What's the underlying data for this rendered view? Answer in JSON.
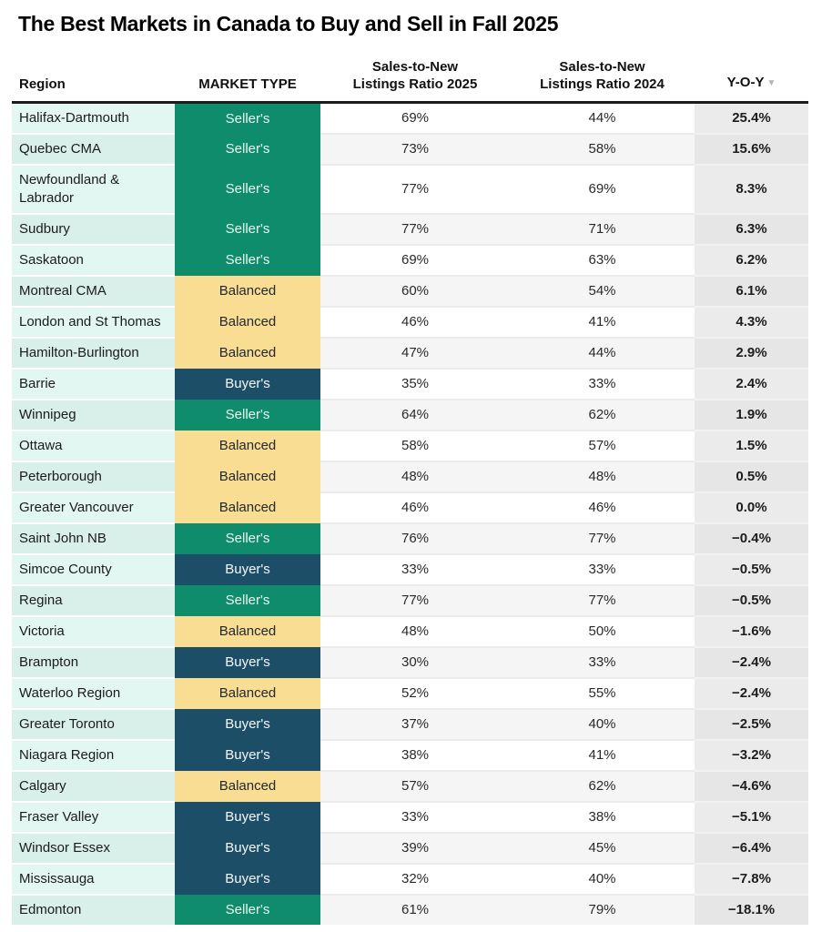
{
  "title": "The Best Markets in Canada to Buy and Sell in Fall 2025",
  "header": {
    "region": "Region",
    "market_type": "MARKET TYPE",
    "ratio_2025_line1": "Sales-to-New",
    "ratio_2025_line2": "Listings Ratio 2025",
    "ratio_2024_line1": "Sales-to-New",
    "ratio_2024_line2": "Listings Ratio 2024",
    "yoy": "Y-O-Y",
    "sort_indicator": "▼"
  },
  "colors": {
    "sellers": "#0f8c6b",
    "buyers": "#1d4e68",
    "balanced": "#f8dd92",
    "region-odd": "#e2f7f2",
    "region-even": "#d9f0ea",
    "ratio-odd": "#ffffff",
    "ratio-even": "#f5f5f5",
    "yoy-odd": "#ebebeb",
    "yoy-even": "#e6e6e6",
    "header-border": "#1c1c1c"
  },
  "chart_data": {
    "type": "table",
    "title": "The Best Markets in Canada to Buy and Sell in Fall 2025",
    "columns": [
      "Region",
      "MARKET TYPE",
      "Sales-to-New Listings Ratio 2025",
      "Sales-to-New Listings Ratio 2024",
      "Y-O-Y"
    ],
    "sort": {
      "column": "Y-O-Y",
      "direction": "descending"
    },
    "rows": [
      {
        "region": "Halifax-Dartmouth",
        "market_type": "Seller's",
        "type_key": "sellers",
        "ratio_2025": "69%",
        "ratio_2024": "44%",
        "yoy": "25.4%"
      },
      {
        "region": "Quebec CMA",
        "market_type": "Seller's",
        "type_key": "sellers",
        "ratio_2025": "73%",
        "ratio_2024": "58%",
        "yoy": "15.6%"
      },
      {
        "region": "Newfoundland & Labrador",
        "market_type": "Seller's",
        "type_key": "sellers",
        "ratio_2025": "77%",
        "ratio_2024": "69%",
        "yoy": "8.3%"
      },
      {
        "region": "Sudbury",
        "market_type": "Seller's",
        "type_key": "sellers",
        "ratio_2025": "77%",
        "ratio_2024": "71%",
        "yoy": "6.3%"
      },
      {
        "region": "Saskatoon",
        "market_type": "Seller's",
        "type_key": "sellers",
        "ratio_2025": "69%",
        "ratio_2024": "63%",
        "yoy": "6.2%"
      },
      {
        "region": "Montreal CMA",
        "market_type": "Balanced",
        "type_key": "balanced",
        "ratio_2025": "60%",
        "ratio_2024": "54%",
        "yoy": "6.1%"
      },
      {
        "region": "London and St Thomas",
        "market_type": "Balanced",
        "type_key": "balanced",
        "ratio_2025": "46%",
        "ratio_2024": "41%",
        "yoy": "4.3%"
      },
      {
        "region": "Hamilton-Burlington",
        "market_type": "Balanced",
        "type_key": "balanced",
        "ratio_2025": "47%",
        "ratio_2024": "44%",
        "yoy": "2.9%"
      },
      {
        "region": "Barrie",
        "market_type": "Buyer's",
        "type_key": "buyers",
        "ratio_2025": "35%",
        "ratio_2024": "33%",
        "yoy": "2.4%"
      },
      {
        "region": "Winnipeg",
        "market_type": "Seller's",
        "type_key": "sellers",
        "ratio_2025": "64%",
        "ratio_2024": "62%",
        "yoy": "1.9%"
      },
      {
        "region": "Ottawa",
        "market_type": "Balanced",
        "type_key": "balanced",
        "ratio_2025": "58%",
        "ratio_2024": "57%",
        "yoy": "1.5%"
      },
      {
        "region": "Peterborough",
        "market_type": "Balanced",
        "type_key": "balanced",
        "ratio_2025": "48%",
        "ratio_2024": "48%",
        "yoy": "0.5%"
      },
      {
        "region": "Greater Vancouver",
        "market_type": "Balanced",
        "type_key": "balanced",
        "ratio_2025": "46%",
        "ratio_2024": "46%",
        "yoy": "0.0%"
      },
      {
        "region": "Saint John NB",
        "market_type": "Seller's",
        "type_key": "sellers",
        "ratio_2025": "76%",
        "ratio_2024": "77%",
        "yoy": "−0.4%"
      },
      {
        "region": "Simcoe County",
        "market_type": "Buyer's",
        "type_key": "buyers",
        "ratio_2025": "33%",
        "ratio_2024": "33%",
        "yoy": "−0.5%"
      },
      {
        "region": "Regina",
        "market_type": "Seller's",
        "type_key": "sellers",
        "ratio_2025": "77%",
        "ratio_2024": "77%",
        "yoy": "−0.5%"
      },
      {
        "region": "Victoria",
        "market_type": "Balanced",
        "type_key": "balanced",
        "ratio_2025": "48%",
        "ratio_2024": "50%",
        "yoy": "−1.6%"
      },
      {
        "region": "Brampton",
        "market_type": "Buyer's",
        "type_key": "buyers",
        "ratio_2025": "30%",
        "ratio_2024": "33%",
        "yoy": "−2.4%"
      },
      {
        "region": "Waterloo Region",
        "market_type": "Balanced",
        "type_key": "balanced",
        "ratio_2025": "52%",
        "ratio_2024": "55%",
        "yoy": "−2.4%"
      },
      {
        "region": "Greater Toronto",
        "market_type": "Buyer's",
        "type_key": "buyers",
        "ratio_2025": "37%",
        "ratio_2024": "40%",
        "yoy": "−2.5%"
      },
      {
        "region": "Niagara Region",
        "market_type": "Buyer's",
        "type_key": "buyers",
        "ratio_2025": "38%",
        "ratio_2024": "41%",
        "yoy": "−3.2%"
      },
      {
        "region": "Calgary",
        "market_type": "Balanced",
        "type_key": "balanced",
        "ratio_2025": "57%",
        "ratio_2024": "62%",
        "yoy": "−4.6%"
      },
      {
        "region": "Fraser Valley",
        "market_type": "Buyer's",
        "type_key": "buyers",
        "ratio_2025": "33%",
        "ratio_2024": "38%",
        "yoy": "−5.1%"
      },
      {
        "region": "Windsor Essex",
        "market_type": "Buyer's",
        "type_key": "buyers",
        "ratio_2025": "39%",
        "ratio_2024": "45%",
        "yoy": "−6.4%"
      },
      {
        "region": "Mississauga",
        "market_type": "Buyer's",
        "type_key": "buyers",
        "ratio_2025": "32%",
        "ratio_2024": "40%",
        "yoy": "−7.8%"
      },
      {
        "region": "Edmonton",
        "market_type": "Seller's",
        "type_key": "sellers",
        "ratio_2025": "61%",
        "ratio_2024": "79%",
        "yoy": "−18.1%"
      }
    ]
  }
}
